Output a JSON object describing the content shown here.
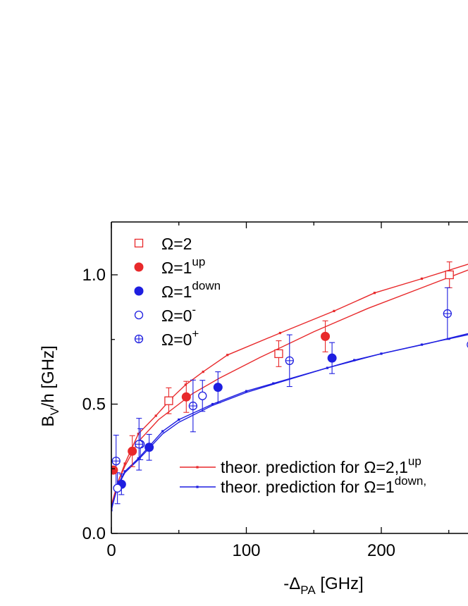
{
  "chart_data": {
    "type": "scatter",
    "xlabel": {
      "main": "-Δ",
      "sub": "PA",
      "unit": " [GHz]"
    },
    "ylabel": {
      "main": "B",
      "sub": "V",
      "unit": "/h [GHz]"
    },
    "xlim": [
      0,
      270
    ],
    "ylim": [
      0,
      1.2
    ],
    "xticks": [
      0,
      100,
      200
    ],
    "xtick_labels": [
      "0",
      "100",
      "200"
    ],
    "yticks": [
      0.0,
      0.5,
      1.0
    ],
    "ytick_labels": [
      "0.0",
      "0.5",
      "1.0"
    ],
    "legend_position": "top-left",
    "series": [
      {
        "name": "Ω=2",
        "label_main": "Ω=2",
        "label_sup": "",
        "marker": "square-open",
        "color": "#e8292b",
        "points": [
          {
            "x": 42.5,
            "y": 0.513,
            "err": 0.05
          },
          {
            "x": 124.0,
            "y": 0.695,
            "err": 0.05
          },
          {
            "x": 250.5,
            "y": 1.0,
            "err": 0.05
          }
        ]
      },
      {
        "name": "Ω=1up",
        "label_main": "Ω=1",
        "label_sup": "up",
        "marker": "circle-filled",
        "color": "#e8292b",
        "points": [
          {
            "x": 1.5,
            "y": 0.245,
            "err": 0
          },
          {
            "x": 15.5,
            "y": 0.318,
            "err": 0.06
          },
          {
            "x": 55.5,
            "y": 0.528,
            "err": 0.06
          },
          {
            "x": 158.5,
            "y": 0.762,
            "err": 0.06
          }
        ]
      },
      {
        "name": "Ω=1down",
        "label_main": "Ω=1",
        "label_sup": "down",
        "marker": "circle-filled",
        "color": "#1e1ee0",
        "points": [
          {
            "x": 7.5,
            "y": 0.19,
            "err": 0.04
          },
          {
            "x": 28.0,
            "y": 0.333,
            "err": 0.05
          },
          {
            "x": 79.0,
            "y": 0.565,
            "err": 0.06
          },
          {
            "x": 163.5,
            "y": 0.678,
            "err": 0.06
          }
        ]
      },
      {
        "name": "Ω=0-",
        "label_main": "Ω=0",
        "label_sup": "-",
        "marker": "circle-open",
        "color": "#1e1ee0",
        "points": [
          {
            "x": 4.5,
            "y": 0.175,
            "err": 0.06
          },
          {
            "x": 21.5,
            "y": 0.345,
            "err": 0.06
          },
          {
            "x": 67.5,
            "y": 0.532,
            "err": 0.06
          },
          {
            "x": 266.5,
            "y": 0.73,
            "err": 0.06
          }
        ]
      },
      {
        "name": "Ω=0+",
        "label_main": "Ω=0",
        "label_sup": "+",
        "marker": "circle-plus",
        "color": "#1e1ee0",
        "points": [
          {
            "x": 3.5,
            "y": 0.28,
            "err": 0.1
          },
          {
            "x": 20.5,
            "y": 0.345,
            "err": 0.1
          },
          {
            "x": 60.5,
            "y": 0.493,
            "err": 0.1
          },
          {
            "x": 132.0,
            "y": 0.668,
            "err": 0.1
          },
          {
            "x": 249.0,
            "y": 0.85,
            "err": 0.1
          }
        ]
      }
    ],
    "theory_lines": [
      {
        "name": "theor. prediction for Ω=2,1up",
        "color": "#e8292b",
        "label_text": "theor. prediction for Ω=2,1",
        "label_sup": "up",
        "x": [
          0,
          5,
          10,
          20,
          33,
          45,
          55,
          68,
          86,
          125,
          165,
          195,
          230,
          270
        ],
        "y": [
          0.1,
          0.2,
          0.27,
          0.385,
          0.455,
          0.525,
          0.575,
          0.625,
          0.69,
          0.775,
          0.86,
          0.93,
          0.985,
          1.05
        ]
      },
      {
        "name": "theor. prediction for Ω=2,1up (fit)",
        "color": "#e8292b",
        "x": [
          0,
          5,
          10,
          20,
          35,
          50,
          60,
          80,
          110,
          150,
          190,
          230,
          270
        ],
        "y": [
          0.11,
          0.2,
          0.26,
          0.355,
          0.44,
          0.5,
          0.54,
          0.6,
          0.68,
          0.78,
          0.87,
          0.95,
          1.03
        ]
      },
      {
        "name": "theor. prediction for Ω=1down",
        "color": "#1e1ee0",
        "label_text": "theor. prediction for Ω=1",
        "label_sup": "down,",
        "x": [
          0,
          5,
          10,
          20,
          38,
          50,
          75,
          100,
          120,
          160,
          180,
          200,
          230,
          270
        ],
        "y": [
          0.09,
          0.19,
          0.24,
          0.29,
          0.395,
          0.44,
          0.5,
          0.55,
          0.58,
          0.64,
          0.67,
          0.695,
          0.73,
          0.775
        ]
      },
      {
        "name": "theor. prediction for Ω=1down (fit)",
        "color": "#1e1ee0",
        "x": [
          0,
          5,
          10,
          20,
          38,
          50,
          75,
          100,
          125,
          160,
          200,
          235,
          270
        ],
        "y": [
          0.1,
          0.185,
          0.235,
          0.285,
          0.385,
          0.43,
          0.495,
          0.545,
          0.585,
          0.64,
          0.695,
          0.735,
          0.78
        ]
      }
    ]
  }
}
